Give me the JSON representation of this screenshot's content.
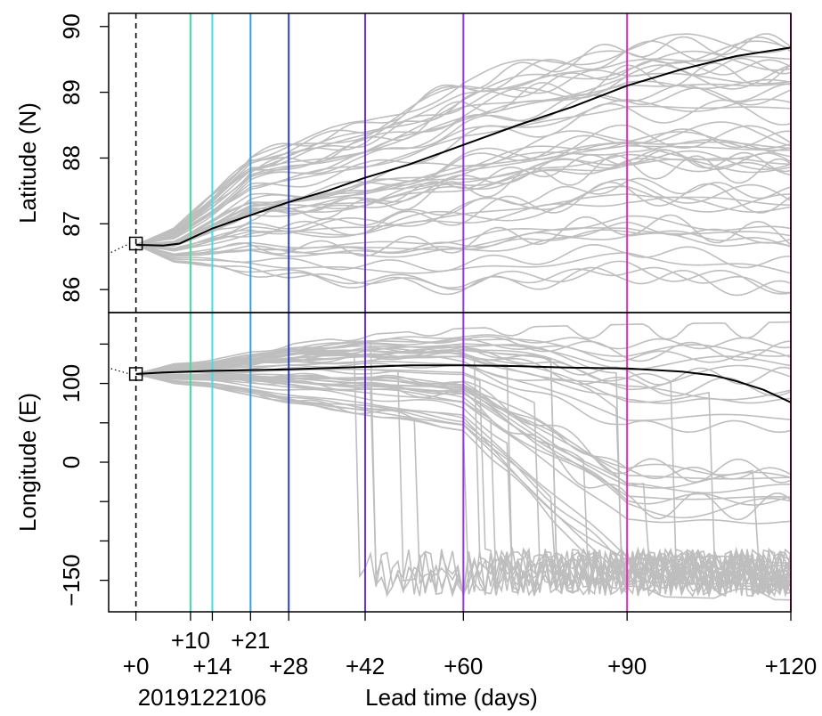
{
  "chart_data": {
    "type": "line",
    "xlabel": "Lead time (days)",
    "date_label": "2019122106",
    "xlim": [
      -5,
      120
    ],
    "lead_tick_labels": [
      {
        "lead": 0,
        "label": "+0",
        "row": "low"
      },
      {
        "lead": 10,
        "label": "+10",
        "row": "high"
      },
      {
        "lead": 14,
        "label": "+14",
        "row": "low"
      },
      {
        "lead": 21,
        "label": "+21",
        "row": "high"
      },
      {
        "lead": 28,
        "label": "+28",
        "row": "low"
      },
      {
        "lead": 42,
        "label": "+42",
        "row": "low"
      },
      {
        "lead": 60,
        "label": "+60",
        "row": "low"
      },
      {
        "lead": 90,
        "label": "+90",
        "row": "low"
      },
      {
        "lead": 120,
        "label": "+120",
        "row": "low"
      }
    ],
    "vertical_lines": [
      {
        "lead": 0,
        "color": "#000000",
        "dashed": true
      },
      {
        "lead": 10,
        "color": "#3fe0a0"
      },
      {
        "lead": 14,
        "color": "#3fe0e0"
      },
      {
        "lead": 21,
        "color": "#3aa0d8"
      },
      {
        "lead": 28,
        "color": "#2a40c8"
      },
      {
        "lead": 42,
        "color": "#6a30e0"
      },
      {
        "lead": 60,
        "color": "#a030e0"
      },
      {
        "lead": 90,
        "color": "#e030c0"
      },
      {
        "lead": 120,
        "color": "#e02080"
      }
    ],
    "panels": [
      {
        "id": "latitude",
        "ylabel": "Latitude (N)",
        "ylim": [
          85.65,
          90.2
        ],
        "yticks": [
          86,
          87,
          88,
          89,
          90
        ],
        "ytick_labels": [
          "86",
          "87",
          "88",
          "89",
          "90"
        ],
        "initial_point": {
          "lead": 0,
          "value": 86.7
        },
        "mean_series": {
          "name": "",
          "color": "#000000",
          "lead": [
            0,
            5,
            8,
            14,
            21,
            28,
            35,
            42,
            50,
            60,
            70,
            80,
            90,
            100,
            110,
            120
          ],
          "values": [
            86.68,
            86.67,
            86.7,
            86.93,
            87.13,
            87.33,
            87.5,
            87.7,
            87.9,
            88.2,
            88.5,
            88.78,
            89.1,
            89.35,
            89.55,
            89.68
          ]
        },
        "ensemble_color": "#bebebe",
        "ensemble_summary": {
          "lead": [
            0,
            7,
            14,
            21,
            28,
            42,
            60,
            90,
            120
          ],
          "min": [
            86.68,
            86.4,
            86.3,
            86.2,
            86.1,
            86.0,
            85.9,
            86.1,
            85.8
          ],
          "max": [
            86.68,
            86.95,
            87.5,
            88.1,
            88.3,
            88.6,
            89.3,
            89.85,
            89.95
          ]
        }
      },
      {
        "id": "longitude",
        "ylabel": "Longitude (E)",
        "ylim": [
          -190,
          190
        ],
        "yticks": [
          -150,
          -100,
          -50,
          0,
          50,
          100,
          150
        ],
        "ytick_labels": [
          "−150",
          "",
          "",
          "0",
          "",
          "100",
          ""
        ],
        "initial_point": {
          "lead": 0,
          "value": 112
        },
        "mean_series": {
          "name": "",
          "color": "#000000",
          "lead": [
            0,
            5,
            14,
            28,
            42,
            50,
            60,
            70,
            80,
            90,
            100,
            106,
            110,
            115,
            120
          ],
          "values": [
            112,
            114,
            116,
            118,
            121,
            123,
            123,
            122,
            120,
            119,
            115,
            110,
            103,
            92,
            76
          ]
        },
        "ensemble_color": "#bebebe",
        "ensemble_summary": {
          "lead": [
            0,
            7,
            14,
            21,
            28,
            42,
            60,
            90,
            120
          ],
          "min": [
            112,
            100,
            95,
            85,
            75,
            60,
            40,
            -170,
            -175
          ],
          "max": [
            112,
            125,
            130,
            140,
            150,
            162,
            170,
            175,
            178
          ]
        }
      }
    ]
  }
}
